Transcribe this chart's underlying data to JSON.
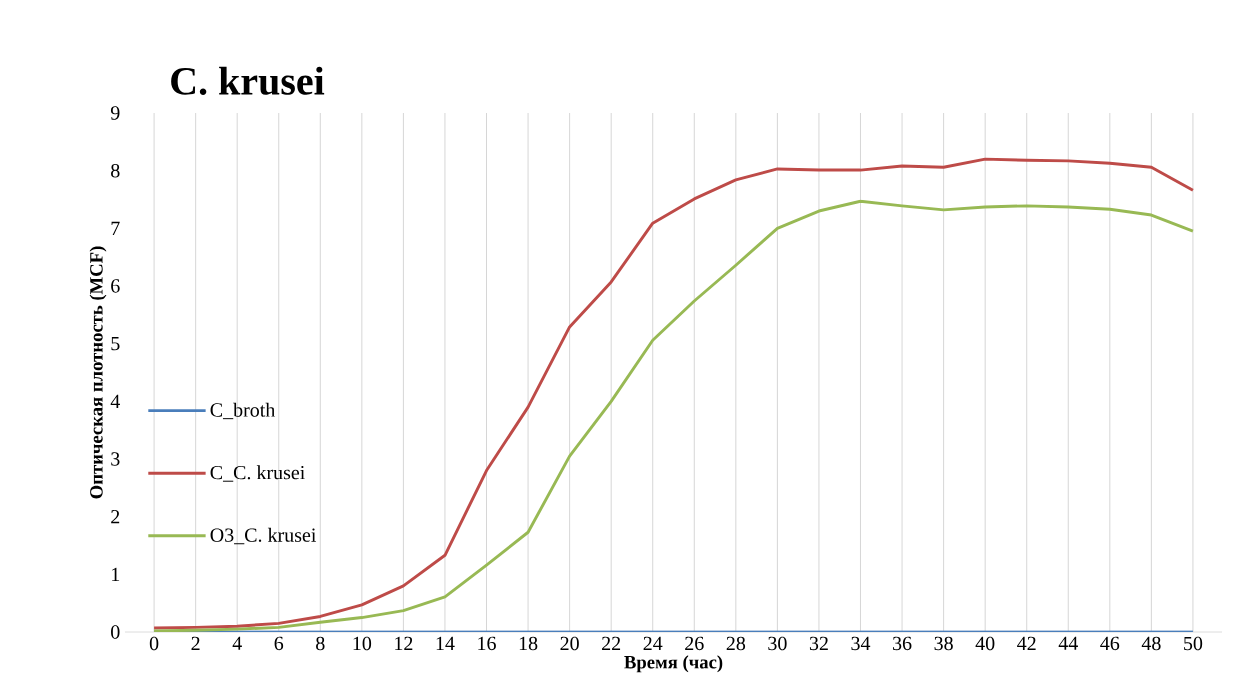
{
  "chart_data": {
    "type": "line",
    "title": "C. krusei",
    "xlabel": "Время (час)",
    "ylabel": "Оптическая плотность (MCF)",
    "categories": [
      "0",
      "2",
      "4",
      "6",
      "8",
      "10",
      "12",
      "14",
      "16",
      "18",
      "20",
      "22",
      "24",
      "26",
      "28",
      "30",
      "32",
      "34",
      "36",
      "38",
      "40",
      "42",
      "44",
      "46",
      "48",
      "50"
    ],
    "series": [
      {
        "name": "C_broth",
        "color": "#4a7ebb",
        "values": [
          0,
          0,
          0,
          0,
          0,
          0,
          0,
          0,
          0,
          0,
          0,
          0,
          0,
          0,
          0,
          0,
          0,
          0,
          0,
          0,
          0,
          0,
          0,
          0,
          0,
          0
        ]
      },
      {
        "name": "C_C. krusei",
        "color": "#be4b48",
        "values": [
          0.07,
          0.08,
          0.1,
          0.15,
          0.27,
          0.47,
          0.8,
          1.33,
          2.8,
          3.9,
          5.29,
          6.07,
          7.09,
          7.51,
          7.84,
          8.03,
          8.01,
          8.01,
          8.08,
          8.06,
          8.2,
          8.18,
          8.17,
          8.13,
          8.06,
          7.66
        ]
      },
      {
        "name": "O3_C. krusei",
        "color": "#98b954",
        "values": [
          0.02,
          0.03,
          0.05,
          0.08,
          0.17,
          0.25,
          0.37,
          0.61,
          1.16,
          1.73,
          3.05,
          4.0,
          5.06,
          5.74,
          6.36,
          7.0,
          7.3,
          7.47,
          7.39,
          7.32,
          7.37,
          7.39,
          7.37,
          7.33,
          7.23,
          6.95
        ]
      }
    ],
    "ylim": [
      0,
      9
    ],
    "yticks": [
      0,
      1,
      2,
      3,
      4,
      5,
      6,
      7,
      8,
      9
    ],
    "grid": "x",
    "legend": "left",
    "marker": "none",
    "line_style": "solid"
  }
}
